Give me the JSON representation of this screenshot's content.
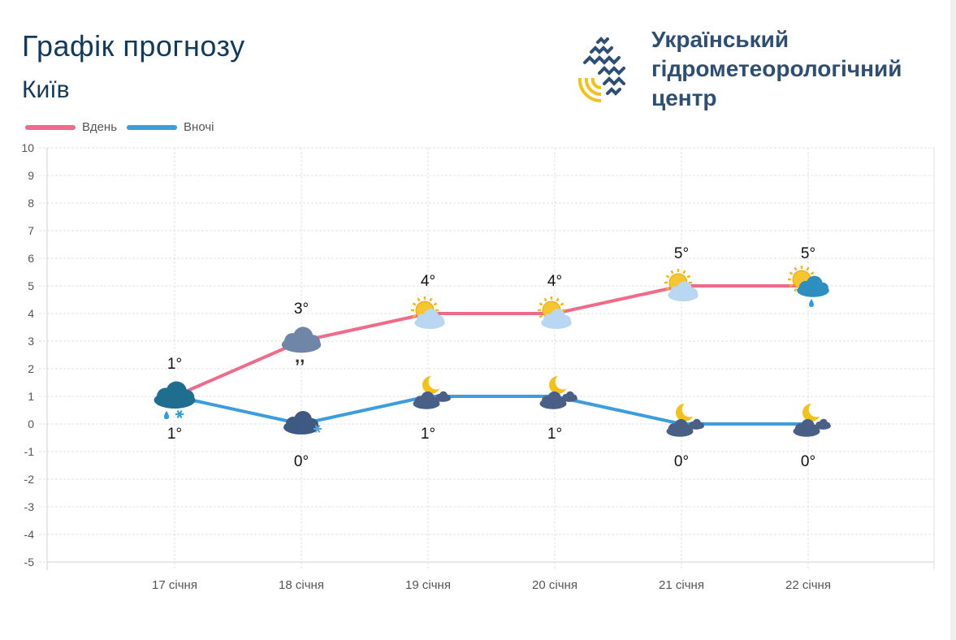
{
  "header": {
    "title": "Графік прогнозу",
    "city": "Київ"
  },
  "org": {
    "line1": "Український",
    "line2": "гідрометеорологічний",
    "line3": "центр"
  },
  "colors": {
    "day": "#f06a8a",
    "night": "#3b9ddd",
    "title": "#123a5c",
    "org": "#2e4f74",
    "accent_yellow": "#f2c21b"
  },
  "chart_data": {
    "type": "line",
    "categories": [
      "17 січня",
      "18 січня",
      "19 січня",
      "20 січня",
      "21 січня",
      "22 січня"
    ],
    "series": [
      {
        "name": "Вдень",
        "values": [
          1,
          3,
          4,
          4,
          5,
          5
        ],
        "labels": [
          "1°",
          "3°",
          "4°",
          "4°",
          "5°",
          "5°"
        ],
        "icons": [
          "rain-snow-cloud",
          "drizzle-cloud",
          "partly-cloudy-sun",
          "partly-cloudy-sun",
          "partly-cloudy-sun",
          "sun-cloud-rain"
        ]
      },
      {
        "name": "Вночі",
        "values": [
          1,
          0,
          1,
          1,
          0,
          0
        ],
        "labels": [
          "1°",
          "0°",
          "1°",
          "1°",
          "0°",
          "0°"
        ],
        "icons": [
          "rain-snow-cloud",
          "snow-cloud",
          "moon-cloud",
          "moon-cloud",
          "moon-cloud",
          "moon-cloud"
        ]
      }
    ],
    "ylim": [
      -5,
      10
    ],
    "yticks": [
      "10",
      "9",
      "8",
      "7",
      "6",
      "5",
      "4",
      "3",
      "2",
      "1",
      "0",
      "-1",
      "-2",
      "-3",
      "-4",
      "-5"
    ],
    "grid": true,
    "legend": "top-left"
  }
}
